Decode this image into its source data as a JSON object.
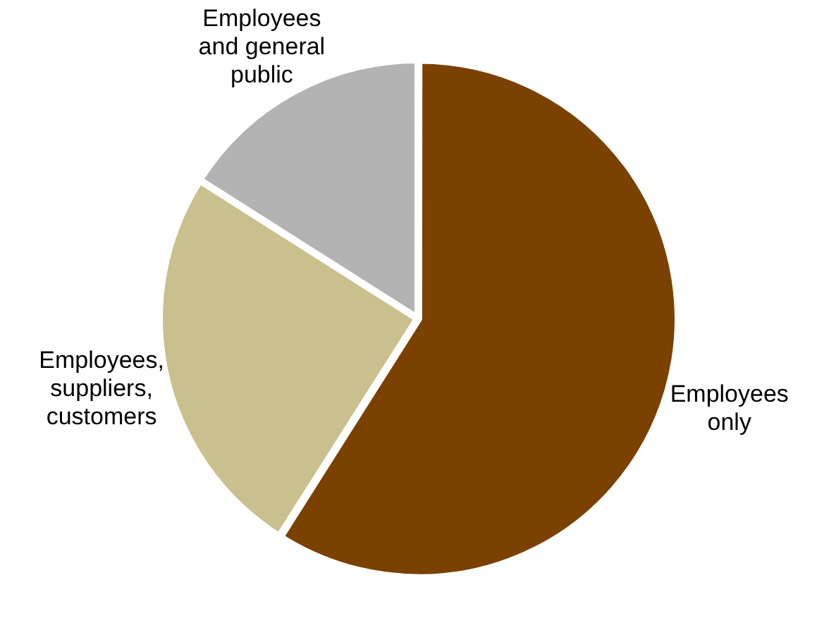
{
  "chart_data": {
    "type": "pie",
    "categories": [
      "Employees only",
      "Employees, suppliers, customers",
      "Employees and general public"
    ],
    "values": [
      59,
      25,
      16
    ],
    "colors": [
      "#7a4100",
      "#c9c08e",
      "#b3b3b3"
    ],
    "legend": false
  }
}
